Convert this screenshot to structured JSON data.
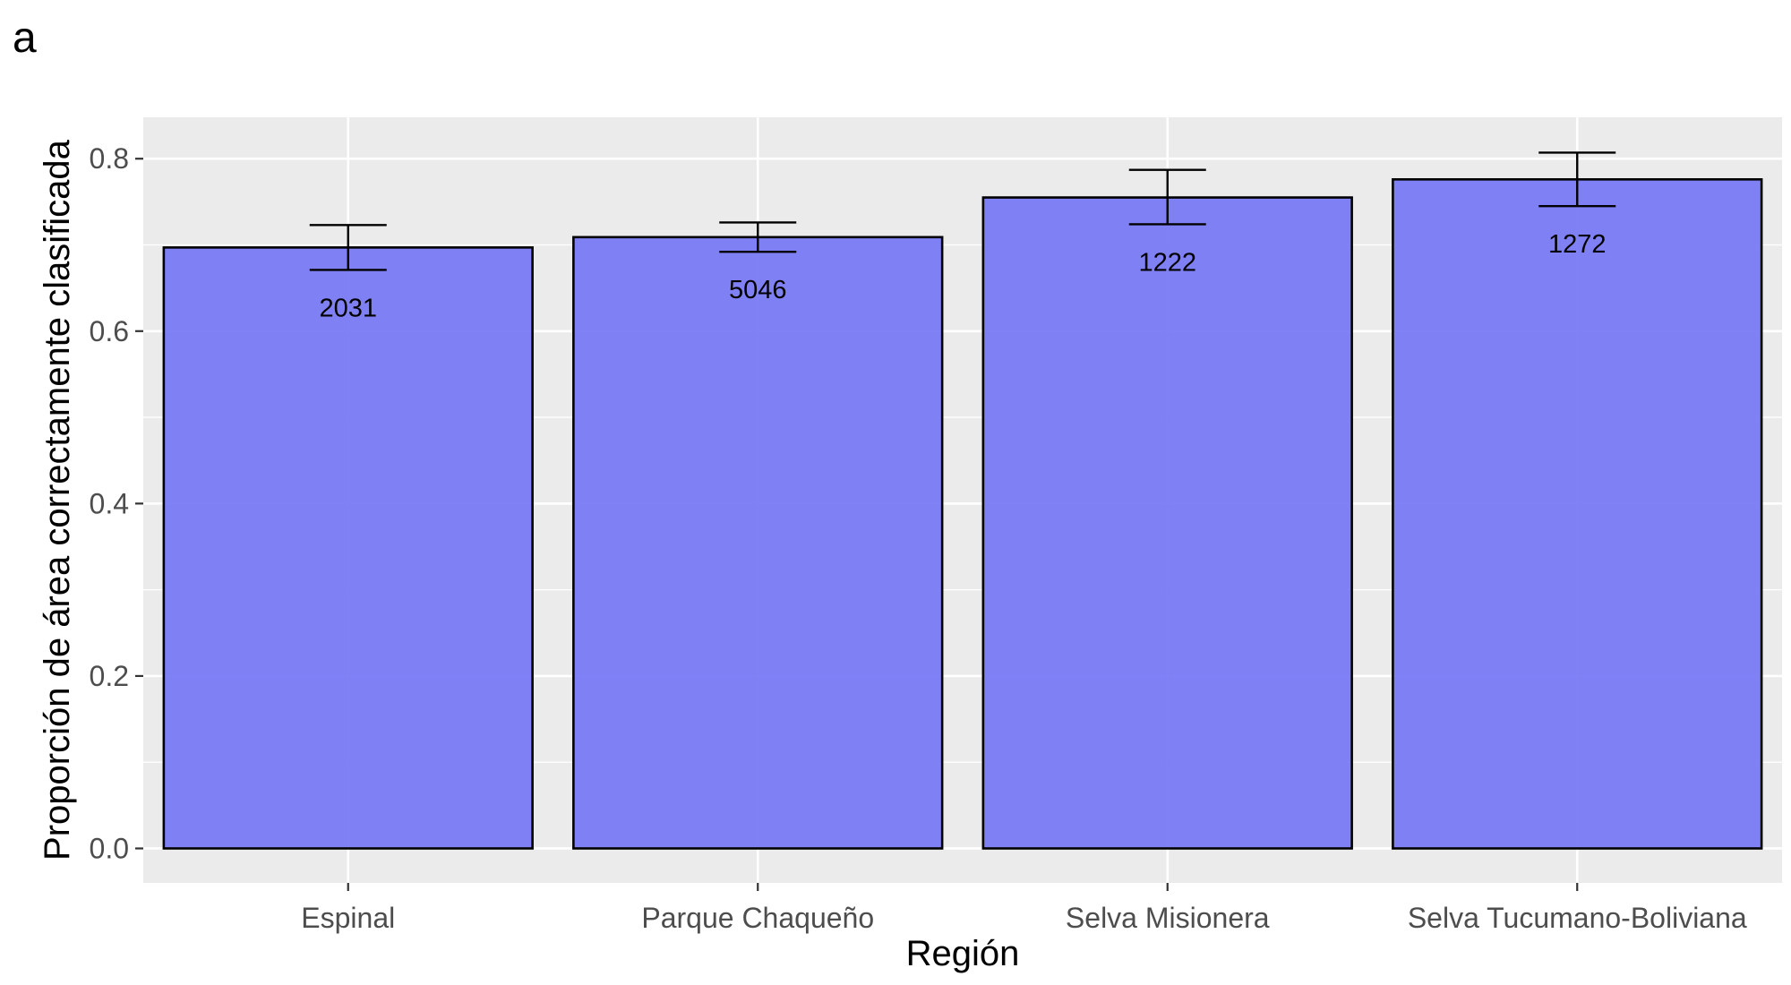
{
  "panel_label": "a",
  "chart_data": {
    "type": "bar",
    "xlabel": "Región",
    "ylabel": "Proporción de área correctamente clasificada",
    "categories": [
      "Espinal",
      "Parque Chaqueño",
      "Selva Misionera",
      "Selva Tucumano-Boliviana"
    ],
    "values": [
      0.697,
      0.709,
      0.755,
      0.776
    ],
    "error_low": [
      0.671,
      0.692,
      0.724,
      0.745
    ],
    "error_high": [
      0.723,
      0.726,
      0.787,
      0.807
    ],
    "data_labels": [
      "2031",
      "5046",
      "1222",
      "1272"
    ],
    "yticks": [
      "0.0",
      "0.2",
      "0.4",
      "0.6",
      "0.8"
    ],
    "ylim": [
      -0.04,
      0.848
    ],
    "grid": true,
    "colors": {
      "bar_fill": "#7676f5",
      "bar_stroke": "#000000",
      "panel_bg": "#ebebeb",
      "grid": "#ffffff"
    }
  }
}
